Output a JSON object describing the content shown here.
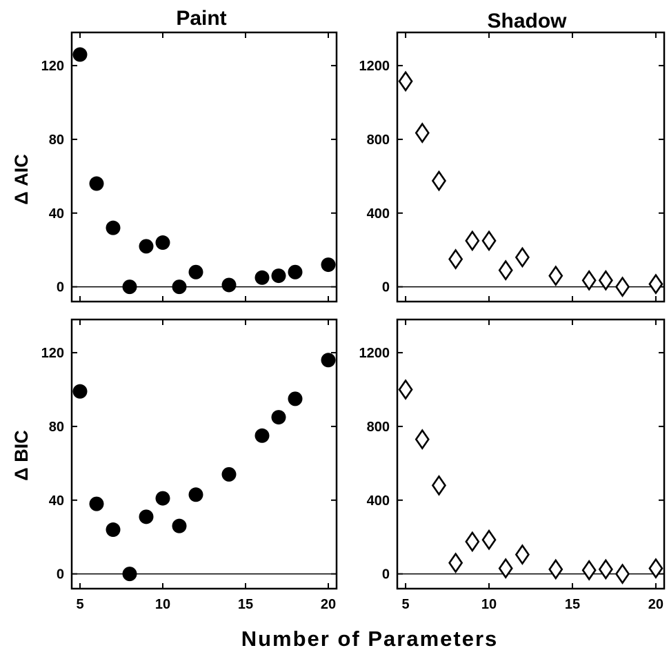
{
  "figure": {
    "xlabel": "Number of Parameters",
    "column_titles": [
      "Paint",
      "Shadow"
    ],
    "row_labels": [
      "Δ AIC",
      "Δ BIC"
    ]
  },
  "chart_data": [
    {
      "type": "scatter",
      "title": "Paint",
      "ylabel": "Δ AIC",
      "xlabel": "",
      "xlim": [
        4.5,
        20.5
      ],
      "ylim": [
        -8,
        138
      ],
      "xticks": [
        5,
        10,
        15,
        20
      ],
      "yticks": [
        0,
        40,
        80,
        120
      ],
      "marker": "filled-circle",
      "marker_color": "#000000",
      "reference_line": 0,
      "series": [
        {
          "x": [
            5,
            6,
            7,
            8,
            9,
            10,
            11,
            12,
            14,
            16,
            17,
            18,
            20
          ],
          "y": [
            126,
            56,
            32,
            0,
            22,
            24,
            0,
            8,
            1,
            5,
            6,
            8,
            12
          ]
        }
      ]
    },
    {
      "type": "scatter",
      "title": "Shadow",
      "ylabel": "",
      "xlabel": "",
      "xlim": [
        4.5,
        20.5
      ],
      "ylim": [
        -80,
        1380
      ],
      "xticks": [
        5,
        10,
        15,
        20
      ],
      "yticks": [
        0,
        400,
        800,
        1200
      ],
      "marker": "open-diamond",
      "marker_color": "#000000",
      "reference_line": 0,
      "series": [
        {
          "x": [
            5,
            6,
            7,
            8,
            9,
            10,
            11,
            12,
            14,
            16,
            17,
            18,
            20
          ],
          "y": [
            1115,
            835,
            575,
            150,
            250,
            250,
            90,
            160,
            60,
            35,
            35,
            0,
            15
          ]
        }
      ]
    },
    {
      "type": "scatter",
      "title": "",
      "ylabel": "Δ BIC",
      "xlabel": "Number of Parameters",
      "xlim": [
        4.5,
        20.5
      ],
      "ylim": [
        -8,
        138
      ],
      "xticks": [
        5,
        10,
        15,
        20
      ],
      "yticks": [
        0,
        40,
        80,
        120
      ],
      "marker": "filled-circle",
      "marker_color": "#000000",
      "reference_line": 0,
      "series": [
        {
          "x": [
            5,
            6,
            7,
            8,
            9,
            10,
            11,
            12,
            14,
            16,
            17,
            18,
            20
          ],
          "y": [
            99,
            38,
            24,
            0,
            31,
            41,
            26,
            43,
            54,
            75,
            85,
            95,
            116
          ]
        }
      ]
    },
    {
      "type": "scatter",
      "title": "",
      "ylabel": "",
      "xlabel": "Number of Parameters",
      "xlim": [
        4.5,
        20.5
      ],
      "ylim": [
        -80,
        1380
      ],
      "xticks": [
        5,
        10,
        15,
        20
      ],
      "yticks": [
        0,
        400,
        800,
        1200
      ],
      "marker": "open-diamond",
      "marker_color": "#000000",
      "reference_line": 0,
      "series": [
        {
          "x": [
            5,
            6,
            7,
            8,
            9,
            10,
            11,
            12,
            14,
            16,
            17,
            18,
            20
          ],
          "y": [
            1000,
            730,
            480,
            60,
            175,
            185,
            30,
            105,
            25,
            20,
            25,
            0,
            30
          ]
        }
      ]
    }
  ]
}
